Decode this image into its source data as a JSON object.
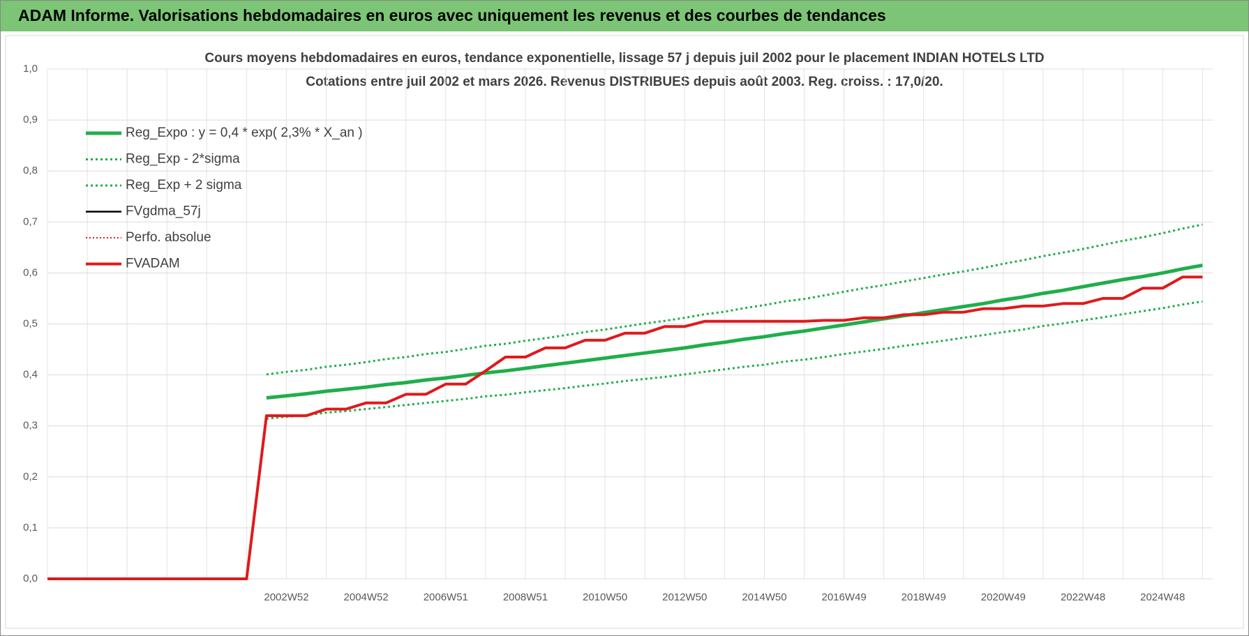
{
  "page_title": "ADAM Informe. Valorisations hebdomadaires en euros avec uniquement les revenus et des courbes de tendances",
  "chart_data": {
    "type": "line",
    "title": "Cours moyens hebdomadaires en euros, tendance exponentielle, lissage 57 j depuis juil 2002 pour le placement INDIAN HOTELS LTD",
    "subtitle": "Cotations entre juil 2002 et mars 2026. Revenus DISTRIBUES depuis août 2003. Reg. croiss. : 17,0/20.",
    "categories": [
      null,
      null,
      null,
      null,
      null,
      null,
      null,
      null,
      null,
      null,
      null,
      null,
      "2002W52",
      null,
      null,
      null,
      "2004W52",
      null,
      null,
      null,
      "2006W51",
      null,
      null,
      null,
      "2008W51",
      null,
      null,
      null,
      "2010W50",
      null,
      null,
      null,
      "2012W50",
      null,
      null,
      null,
      "2014W50",
      null,
      null,
      null,
      "2016W49",
      null,
      null,
      null,
      "2018W49",
      null,
      null,
      null,
      "2020W49",
      null,
      null,
      null,
      "2022W48",
      null,
      null,
      null,
      "2024W48",
      null,
      null
    ],
    "ylim": [
      0,
      1
    ],
    "yticks": [
      {
        "value": 0,
        "label": "0,0"
      },
      {
        "value": 0.1,
        "label": "0,1"
      },
      {
        "value": 0.2,
        "label": "0,2"
      },
      {
        "value": 0.3,
        "label": "0,3"
      },
      {
        "value": 0.4,
        "label": "0,4"
      },
      {
        "value": 0.5,
        "label": "0,5"
      },
      {
        "value": 0.6,
        "label": "0,6"
      },
      {
        "value": 0.7,
        "label": "0,7"
      },
      {
        "value": 0.8,
        "label": "0,8"
      },
      {
        "value": 0.9,
        "label": "0,9"
      },
      {
        "value": 1,
        "label": "1,0"
      }
    ],
    "grid": true,
    "legend": "top-left",
    "series": [
      {
        "name": "Reg_Expo : y = 0,4 * exp( 2,3% *  X_an )",
        "color": "#1fae4b",
        "style": "solid",
        "width": 5,
        "values": [
          null,
          null,
          null,
          null,
          null,
          null,
          null,
          null,
          null,
          null,
          null,
          0.355,
          0.359,
          0.363,
          0.368,
          0.372,
          0.376,
          0.381,
          0.385,
          0.39,
          0.394,
          0.399,
          0.404,
          0.408,
          0.413,
          0.418,
          0.423,
          0.428,
          0.433,
          0.438,
          0.443,
          0.448,
          0.453,
          0.459,
          0.464,
          0.47,
          0.475,
          0.481,
          0.486,
          0.492,
          0.498,
          0.504,
          0.51,
          0.516,
          0.522,
          0.528,
          0.534,
          0.54,
          0.547,
          0.553,
          0.56,
          0.566,
          0.573,
          0.58,
          0.587,
          0.593,
          0.6,
          0.608,
          0.615
        ]
      },
      {
        "name": "Reg_Exp - 2*sigma",
        "color": "#1fae4b",
        "style": "dotted",
        "width": 3,
        "values": [
          null,
          null,
          null,
          null,
          null,
          null,
          null,
          null,
          null,
          null,
          null,
          0.314,
          0.318,
          0.321,
          0.326,
          0.329,
          0.333,
          0.337,
          0.341,
          0.345,
          0.349,
          0.353,
          0.358,
          0.361,
          0.366,
          0.37,
          0.374,
          0.379,
          0.383,
          0.388,
          0.392,
          0.396,
          0.401,
          0.406,
          0.411,
          0.416,
          0.42,
          0.426,
          0.43,
          0.435,
          0.441,
          0.446,
          0.451,
          0.457,
          0.462,
          0.467,
          0.473,
          0.478,
          0.484,
          0.489,
          0.496,
          0.501,
          0.507,
          0.513,
          0.519,
          0.525,
          0.531,
          0.538,
          0.544
        ]
      },
      {
        "name": "Reg_Exp + 2 sigma",
        "color": "#1fae4b",
        "style": "dotted",
        "width": 3,
        "values": [
          null,
          null,
          null,
          null,
          null,
          null,
          null,
          null,
          null,
          null,
          null,
          0.401,
          0.406,
          0.41,
          0.416,
          0.42,
          0.425,
          0.431,
          0.435,
          0.441,
          0.445,
          0.451,
          0.457,
          0.461,
          0.467,
          0.472,
          0.478,
          0.484,
          0.489,
          0.495,
          0.501,
          0.506,
          0.512,
          0.519,
          0.524,
          0.531,
          0.537,
          0.544,
          0.549,
          0.556,
          0.563,
          0.57,
          0.576,
          0.583,
          0.59,
          0.597,
          0.603,
          0.61,
          0.618,
          0.625,
          0.633,
          0.64,
          0.647,
          0.655,
          0.663,
          0.67,
          0.678,
          0.687,
          0.695
        ]
      },
      {
        "name": "FVgdma_57j",
        "color": "#000000",
        "style": "solid",
        "width": 2.5,
        "values": [
          0,
          0,
          0,
          0,
          0,
          0,
          0,
          0,
          0,
          0,
          0,
          0.32,
          0.32,
          0.32,
          0.333,
          0.333,
          0.345,
          0.345,
          0.362,
          0.362,
          0.382,
          0.382,
          0.408,
          0.435,
          0.435,
          0.453,
          0.453,
          0.468,
          0.468,
          0.482,
          0.482,
          0.495,
          0.495,
          0.505,
          0.505,
          0.505,
          0.505,
          0.505,
          0.505,
          0.507,
          0.507,
          0.512,
          0.512,
          0.518,
          0.518,
          0.523,
          0.523,
          0.53,
          0.53,
          0.535,
          0.535,
          0.54,
          0.54,
          0.55,
          0.55,
          0.57,
          0.57,
          0.592,
          0.592
        ]
      },
      {
        "name": "Perfo. absolue",
        "color": "#e0191a",
        "style": "dotted",
        "width": 2,
        "values": [
          0,
          0,
          0,
          0,
          0,
          0,
          0,
          0,
          0,
          0,
          0,
          0.32,
          0.32,
          0.32,
          0.333,
          0.333,
          0.345,
          0.345,
          0.362,
          0.362,
          0.382,
          0.382,
          0.408,
          0.435,
          0.435,
          0.453,
          0.453,
          0.468,
          0.468,
          0.482,
          0.482,
          0.495,
          0.495,
          0.505,
          0.505,
          0.505,
          0.505,
          0.505,
          0.505,
          0.507,
          0.507,
          0.512,
          0.512,
          0.518,
          0.518,
          0.523,
          0.523,
          0.53,
          0.53,
          0.535,
          0.535,
          0.54,
          0.54,
          0.55,
          0.55,
          0.57,
          0.57,
          0.592,
          0.592
        ]
      },
      {
        "name": "FVADAM",
        "color": "#e0191a",
        "style": "solid",
        "width": 4,
        "values": [
          0,
          0,
          0,
          0,
          0,
          0,
          0,
          0,
          0,
          0,
          0,
          0.32,
          0.32,
          0.32,
          0.333,
          0.333,
          0.345,
          0.345,
          0.362,
          0.362,
          0.382,
          0.382,
          0.408,
          0.435,
          0.435,
          0.453,
          0.453,
          0.468,
          0.468,
          0.482,
          0.482,
          0.495,
          0.495,
          0.505,
          0.505,
          0.505,
          0.505,
          0.505,
          0.505,
          0.507,
          0.507,
          0.512,
          0.512,
          0.518,
          0.518,
          0.523,
          0.523,
          0.53,
          0.53,
          0.535,
          0.535,
          0.54,
          0.54,
          0.55,
          0.55,
          0.57,
          0.57,
          0.592,
          0.592
        ]
      }
    ]
  }
}
